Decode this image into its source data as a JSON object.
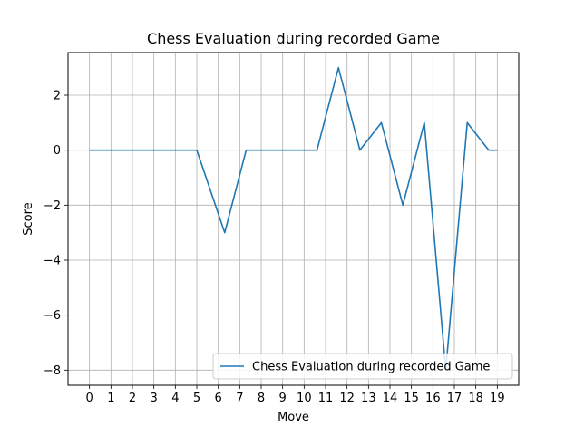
{
  "chart_data": {
    "type": "line",
    "title": "Chess Evaluation during recorded Game",
    "xlabel": "Move",
    "ylabel": "Score",
    "x_tick_labels": [
      "0",
      "1",
      "2",
      "3",
      "4",
      "5",
      "6",
      "7",
      "8",
      "9",
      "10",
      "11",
      "12",
      "13",
      "14",
      "15",
      "16",
      "17",
      "18",
      "19"
    ],
    "y_ticks": [
      2,
      0,
      -2,
      -4,
      -6,
      -8
    ],
    "y_tick_labels": [
      "2",
      "0",
      "−2",
      "−4",
      "−6",
      "−8"
    ],
    "ylim": [
      -8.55,
      3.55
    ],
    "grid": true,
    "legend_position": "lower-right",
    "series": [
      {
        "name": "Chess Evaluation during recorded Game",
        "color": "#1f77b4",
        "x": [
          0,
          1,
          2,
          3,
          4,
          5,
          6,
          7,
          8,
          9,
          10,
          11,
          12,
          13,
          14,
          15,
          16,
          17,
          18,
          19
        ],
        "x_tick_index": [
          0,
          1,
          2,
          3,
          4,
          5,
          6.3,
          7.3,
          8,
          9,
          10.6,
          11.6,
          12.6,
          13.6,
          14.6,
          15.6,
          16.6,
          17.6,
          18.6,
          19
        ],
        "values": [
          0,
          0,
          0,
          0,
          0,
          0,
          -3,
          0,
          0,
          0,
          0,
          3,
          0,
          1,
          -2,
          1,
          -8,
          1,
          0,
          0
        ]
      }
    ]
  }
}
